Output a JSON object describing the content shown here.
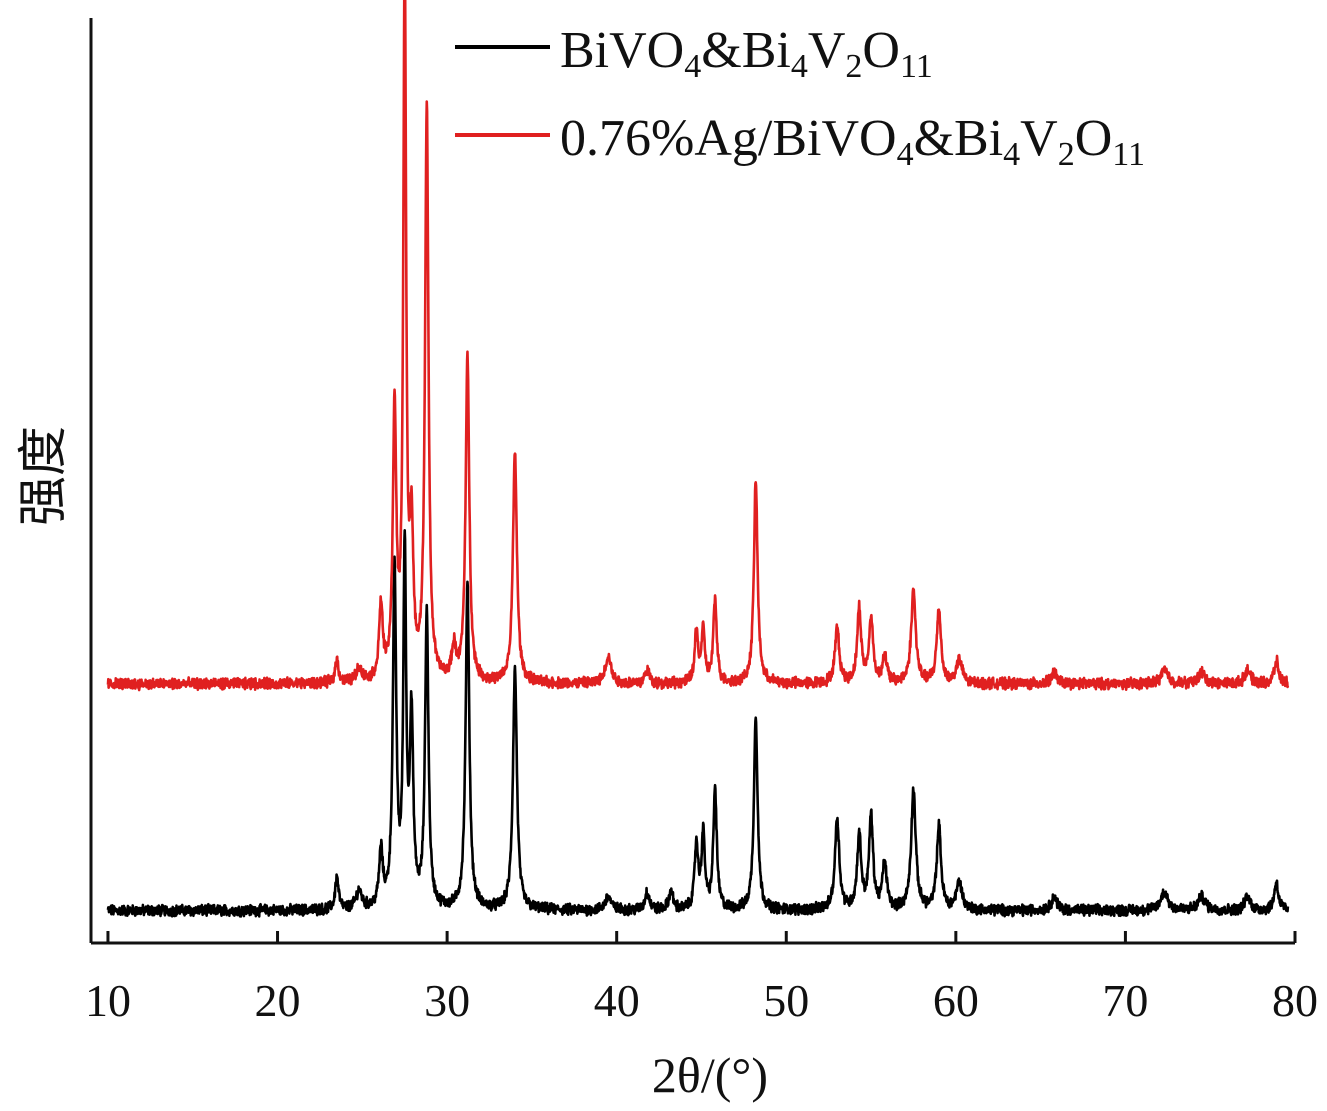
{
  "chart_data": {
    "type": "line",
    "title": "",
    "xlabel": "2θ/(°)",
    "ylabel": "强度",
    "xlim": [
      9,
      80
    ],
    "x_ticks": [
      10,
      20,
      30,
      40,
      50,
      60,
      70,
      80
    ],
    "y_ticks": [],
    "ylim": [
      0,
      100
    ],
    "grid": false,
    "legend_position": "top-right",
    "series": [
      {
        "name": "BiVO4&Bi4V2O11",
        "name_parts": [
          [
            "BiVO",
            ""
          ],
          [
            "4",
            "sub"
          ],
          [
            "&Bi",
            ""
          ],
          [
            "4",
            "sub"
          ],
          [
            "V",
            ""
          ],
          [
            "2",
            "sub"
          ],
          [
            "O",
            ""
          ],
          [
            "11",
            "sub"
          ]
        ],
        "color": "#000000",
        "baseline": 3.5,
        "noise": 0.5,
        "peaks": [
          [
            23.5,
            3.5,
            0.12
          ],
          [
            24.8,
            2.0,
            0.2
          ],
          [
            26.1,
            6.0,
            0.13
          ],
          [
            26.9,
            36.0,
            0.12
          ],
          [
            27.5,
            38.0,
            0.1
          ],
          [
            27.9,
            20.0,
            0.12
          ],
          [
            28.8,
            32.0,
            0.12
          ],
          [
            31.2,
            35.0,
            0.13
          ],
          [
            34.0,
            26.0,
            0.14
          ],
          [
            39.5,
            1.5,
            0.2
          ],
          [
            41.8,
            2.0,
            0.15
          ],
          [
            43.2,
            2.0,
            0.15
          ],
          [
            44.7,
            7.0,
            0.12
          ],
          [
            45.1,
            8.0,
            0.12
          ],
          [
            45.8,
            13.0,
            0.12
          ],
          [
            48.2,
            21.0,
            0.13
          ],
          [
            53.0,
            10.0,
            0.15
          ],
          [
            54.3,
            8.0,
            0.14
          ],
          [
            55.0,
            10.0,
            0.14
          ],
          [
            55.8,
            5.0,
            0.15
          ],
          [
            57.5,
            13.0,
            0.16
          ],
          [
            59.0,
            9.0,
            0.15
          ],
          [
            60.2,
            3.0,
            0.2
          ],
          [
            65.8,
            1.5,
            0.2
          ],
          [
            72.3,
            2.0,
            0.25
          ],
          [
            74.5,
            1.5,
            0.25
          ],
          [
            77.2,
            1.5,
            0.2
          ],
          [
            78.9,
            3.0,
            0.15
          ]
        ]
      },
      {
        "name": "0.76%Ag/BiVO4&Bi4V2O11",
        "name_parts": [
          [
            "0.76%Ag/BiVO",
            ""
          ],
          [
            "4",
            "sub"
          ],
          [
            "&Bi",
            ""
          ],
          [
            "4",
            "sub"
          ],
          [
            "V",
            ""
          ],
          [
            "2",
            "sub"
          ],
          [
            "O",
            ""
          ],
          [
            "11",
            "sub"
          ]
        ],
        "color": "#e02020",
        "baseline": 28.0,
        "noise": 0.5,
        "peaks": [
          [
            23.5,
            2.5,
            0.12
          ],
          [
            24.8,
            1.5,
            0.2
          ],
          [
            26.1,
            8.0,
            0.13
          ],
          [
            26.9,
            29.0,
            0.12
          ],
          [
            27.5,
            77.0,
            0.1
          ],
          [
            27.9,
            15.0,
            0.12
          ],
          [
            28.8,
            62.0,
            0.12
          ],
          [
            30.4,
            3.5,
            0.15
          ],
          [
            31.2,
            35.0,
            0.13
          ],
          [
            34.0,
            25.0,
            0.14
          ],
          [
            39.5,
            3.0,
            0.2
          ],
          [
            41.8,
            1.5,
            0.15
          ],
          [
            44.7,
            5.5,
            0.12
          ],
          [
            45.1,
            5.5,
            0.12
          ],
          [
            45.8,
            9.0,
            0.12
          ],
          [
            48.2,
            22.0,
            0.13
          ],
          [
            53.0,
            6.0,
            0.15
          ],
          [
            54.3,
            8.0,
            0.14
          ],
          [
            55.0,
            7.0,
            0.14
          ],
          [
            55.8,
            3.0,
            0.15
          ],
          [
            57.5,
            10.0,
            0.16
          ],
          [
            59.0,
            8.0,
            0.15
          ],
          [
            60.2,
            2.5,
            0.2
          ],
          [
            65.8,
            1.2,
            0.2
          ],
          [
            72.3,
            1.5,
            0.25
          ],
          [
            74.5,
            1.2,
            0.25
          ],
          [
            77.2,
            1.5,
            0.2
          ],
          [
            78.9,
            2.5,
            0.15
          ]
        ]
      }
    ]
  }
}
